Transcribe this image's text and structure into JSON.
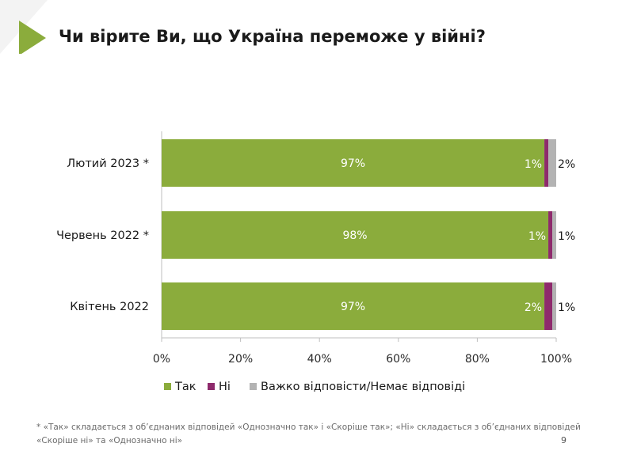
{
  "slide": {
    "title": "Чи вірите Ви, що Україна переможе у війні?",
    "footnote": "* «Так» складається з об’єднаних відповідей «Однозначно так» і «Скоріше так»; «Ні» складається з об’єднаних відповідей «Скоріше ні» та «Однозначно ні»",
    "page_number": "9",
    "accent_color": "#8bac3c"
  },
  "chart_data": {
    "type": "bar",
    "orientation": "horizontal",
    "stacked": true,
    "title": "",
    "xlabel": "",
    "ylabel": "",
    "xlim": [
      0,
      100
    ],
    "x_ticks": [
      "0%",
      "20%",
      "40%",
      "60%",
      "80%",
      "100%"
    ],
    "grid": false,
    "legend_position": "bottom",
    "categories": [
      "Лютий 2023 *",
      "Червень 2022 *",
      "Квітень 2022"
    ],
    "series": [
      {
        "name": "Так",
        "color": "#8bac3c",
        "values": [
          97,
          98,
          97
        ],
        "labels": [
          "97%",
          "98%",
          "97%"
        ]
      },
      {
        "name": "Ні",
        "color": "#8e2a6c",
        "values": [
          1,
          1,
          2
        ],
        "labels": [
          "1%",
          "1%",
          "2%"
        ]
      },
      {
        "name": "Важко відповісти/Немає відповіді",
        "color": "#b3b3b3",
        "values": [
          2,
          1,
          1
        ],
        "labels": [
          "2%",
          "1%",
          "1%"
        ]
      }
    ]
  }
}
